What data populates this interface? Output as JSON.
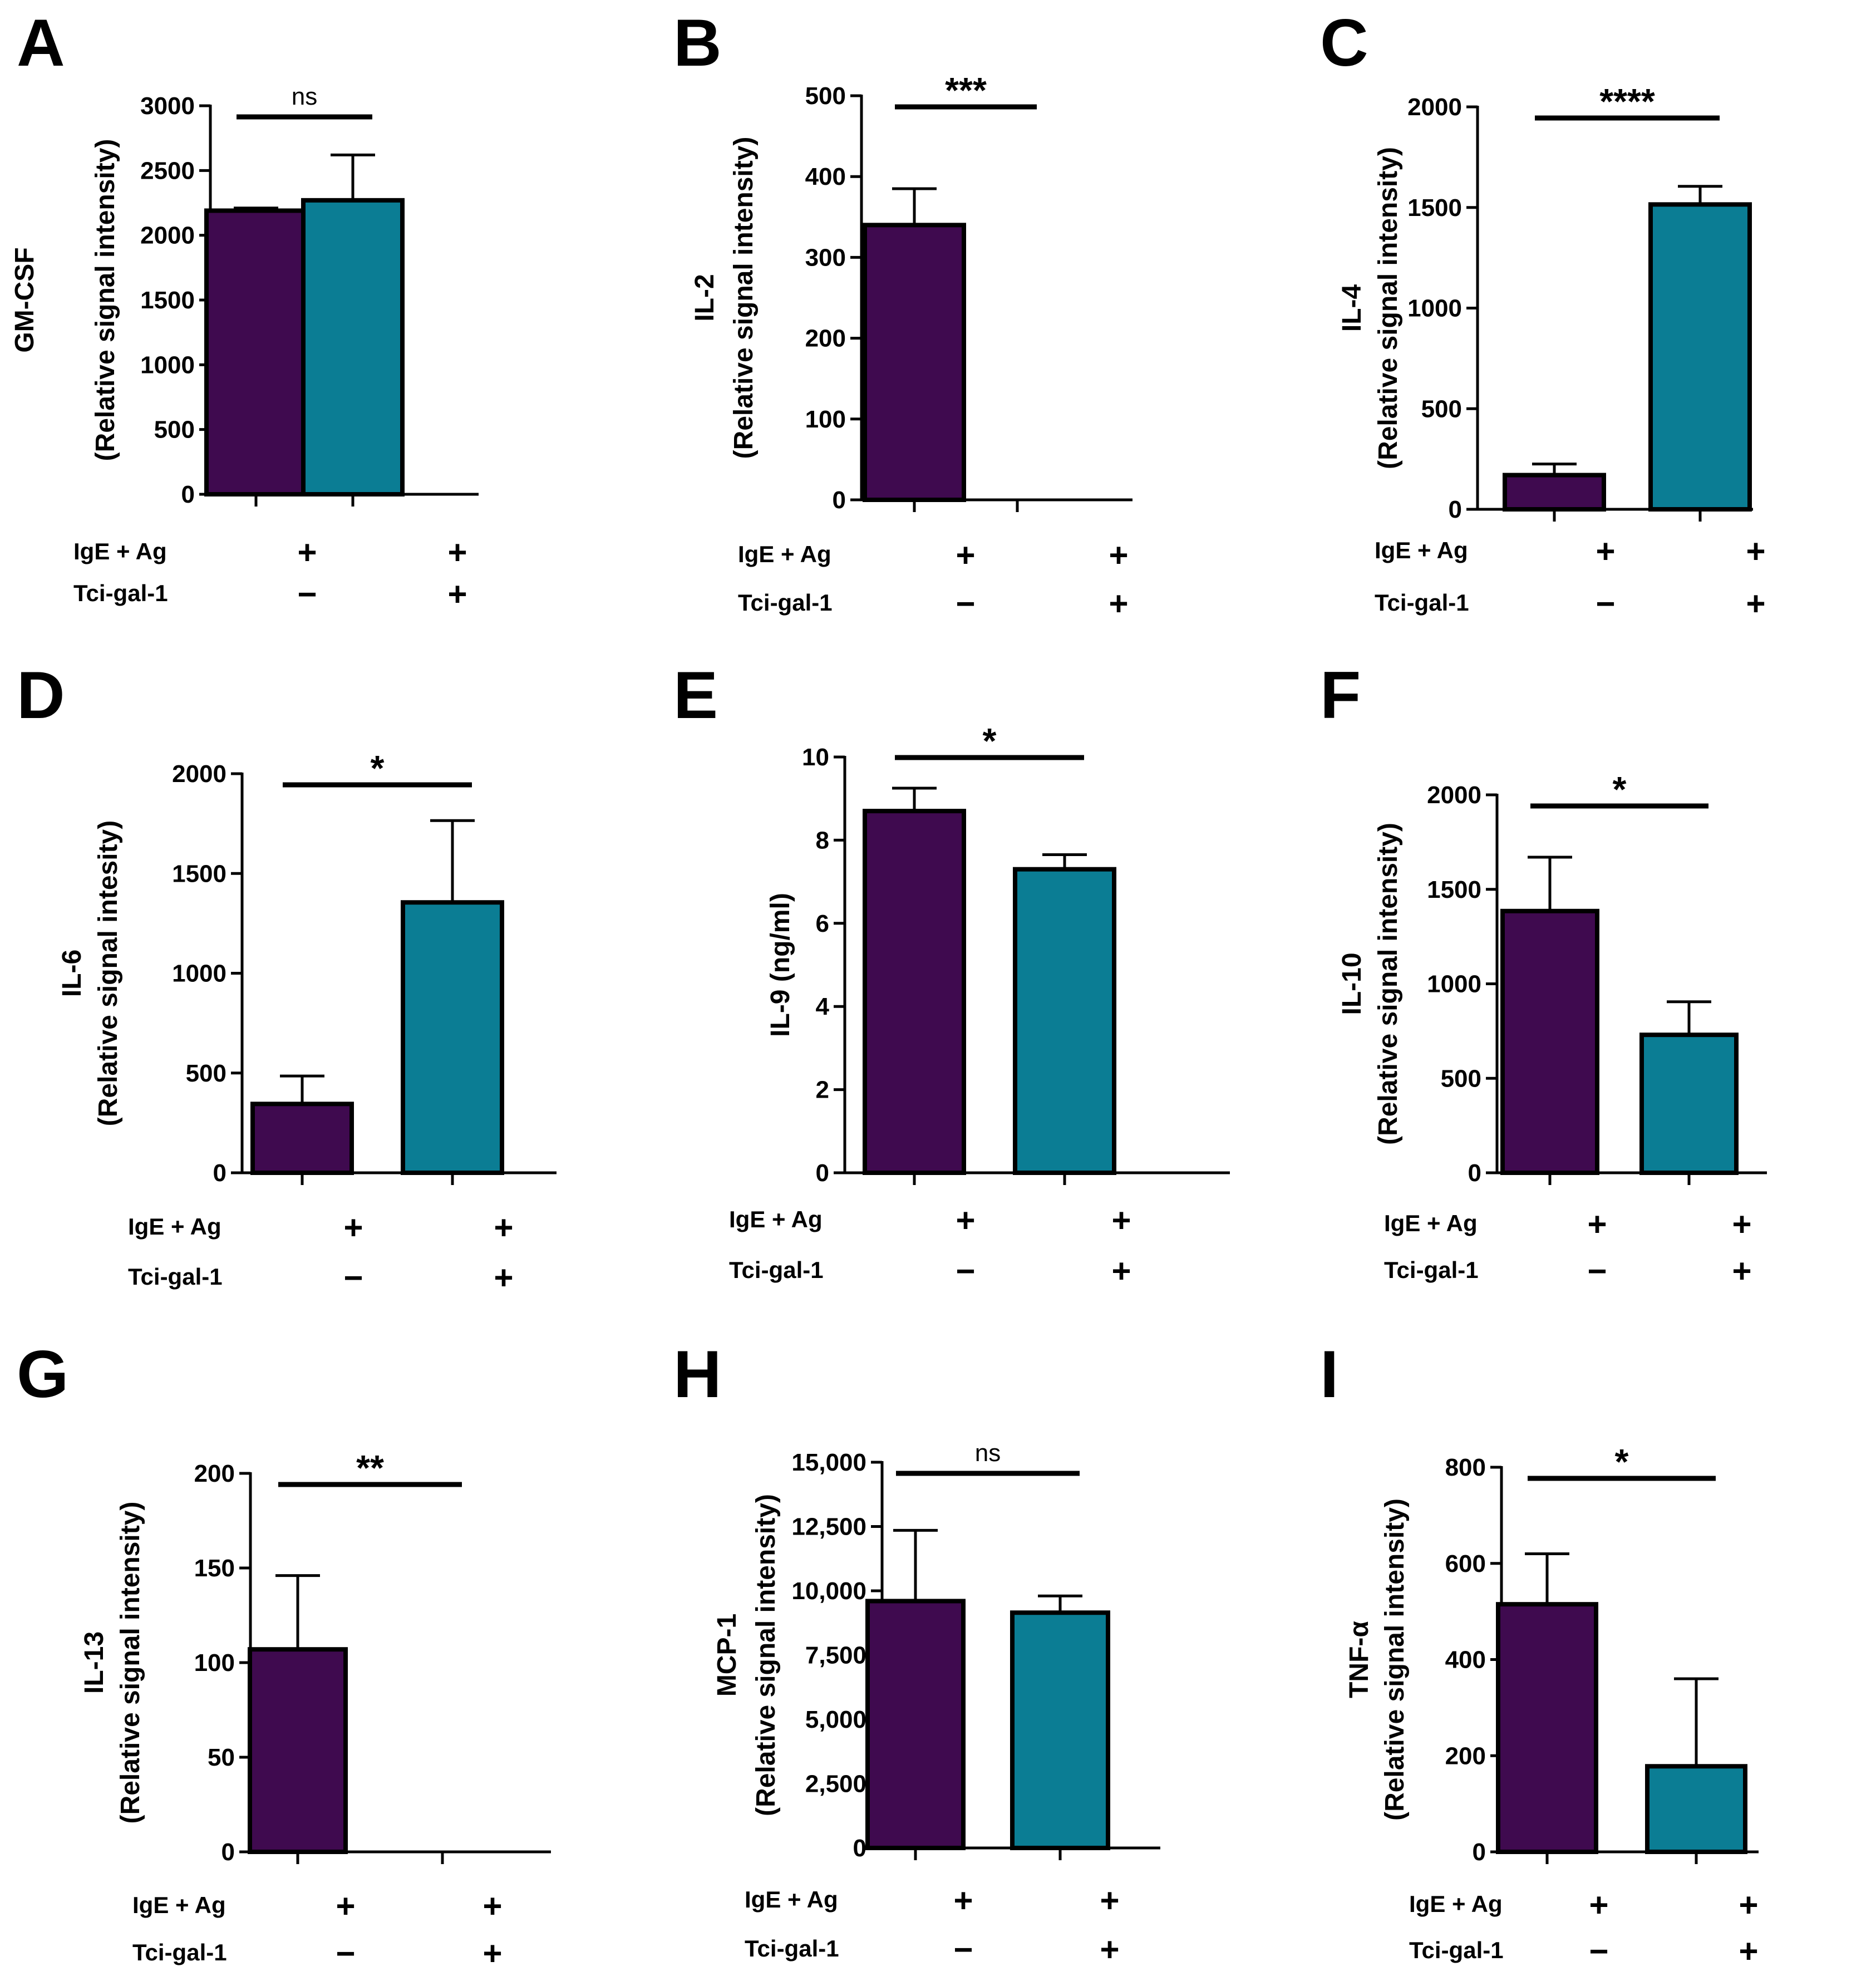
{
  "figure": {
    "colors": {
      "untreated": "#3f0a4f",
      "treated": "#0b7d94",
      "stroke": "#000000",
      "background": "#ffffff"
    },
    "condition_labels": [
      "IgE + Ag",
      "Tci-gal-1"
    ],
    "condition_signs": [
      [
        "+",
        "+"
      ],
      [
        "−",
        "+"
      ]
    ]
  },
  "chart_data": [
    {
      "panel": "A",
      "type": "bar",
      "title": "",
      "categories": [
        "IgE+Ag / −",
        "IgE+Ag / Tci-gal-1"
      ],
      "values": [
        2190,
        2270
      ],
      "errors": [
        20,
        350
      ],
      "ylim": [
        0,
        3000
      ],
      "yticks": [
        "0",
        "500",
        "1000",
        "1500",
        "2000",
        "2500",
        "3000"
      ],
      "ylabel": [
        "GM-CSF",
        "(Relative signal intensity)"
      ],
      "significance": "ns",
      "xlabel": ""
    },
    {
      "panel": "B",
      "type": "bar",
      "title": "",
      "categories": [
        "IgE+Ag / −",
        "IgE+Ag / Tci-gal-1"
      ],
      "values": [
        340,
        0
      ],
      "errors": [
        45,
        0
      ],
      "ylim": [
        0,
        500
      ],
      "yticks": [
        "0",
        "100",
        "200",
        "300",
        "400",
        "500"
      ],
      "ylabel": [
        "IL-2",
        "(Relative signal intensity)"
      ],
      "significance": "***",
      "xlabel": ""
    },
    {
      "panel": "C",
      "type": "bar",
      "title": "",
      "categories": [
        "IgE+Ag / −",
        "IgE+Ag / Tci-gal-1"
      ],
      "values": [
        170,
        1515
      ],
      "errors": [
        55,
        90
      ],
      "ylim": [
        0,
        2000
      ],
      "yticks": [
        "0",
        "500",
        "1000",
        "1500",
        "2000"
      ],
      "ylabel": [
        "IL-4",
        "(Relative signal intensity)"
      ],
      "significance": "****",
      "xlabel": ""
    },
    {
      "panel": "D",
      "type": "bar",
      "title": "",
      "categories": [
        "IgE+Ag / −",
        "IgE+Ag / Tci-gal-1"
      ],
      "values": [
        345,
        1355
      ],
      "errors": [
        140,
        410
      ],
      "ylim": [
        0,
        2000
      ],
      "yticks": [
        "0",
        "500",
        "1000",
        "1500",
        "2000"
      ],
      "ylabel": [
        "IL-6",
        "(Relative signal intesity)"
      ],
      "significance": "*",
      "xlabel": ""
    },
    {
      "panel": "E",
      "type": "bar",
      "title": "",
      "categories": [
        "IgE+Ag / −",
        "IgE+Ag / Tci-gal-1"
      ],
      "values": [
        8.7,
        7.3
      ],
      "errors": [
        0.55,
        0.35
      ],
      "ylim": [
        0,
        10
      ],
      "yticks": [
        "0",
        "2",
        "4",
        "6",
        "8",
        "10"
      ],
      "ylabel": [
        "IL-9 (ng/ml)"
      ],
      "significance": "*",
      "xlabel": ""
    },
    {
      "panel": "F",
      "type": "bar",
      "title": "",
      "categories": [
        "IgE+Ag / −",
        "IgE+Ag / Tci-gal-1"
      ],
      "values": [
        1385,
        730
      ],
      "errors": [
        285,
        175
      ],
      "ylim": [
        0,
        2000
      ],
      "yticks": [
        "0",
        "500",
        "1000",
        "1500",
        "2000"
      ],
      "ylabel": [
        "IL-10",
        "(Relative signal intensity)"
      ],
      "significance": "*",
      "xlabel": ""
    },
    {
      "panel": "G",
      "type": "bar",
      "title": "",
      "categories": [
        "IgE+Ag / −",
        "IgE+Ag / Tci-gal-1"
      ],
      "values": [
        107,
        0
      ],
      "errors": [
        39,
        0
      ],
      "ylim": [
        0,
        200
      ],
      "yticks": [
        "0",
        "50",
        "100",
        "150",
        "200"
      ],
      "ylabel": [
        "IL-13",
        "(Relative signal intensity)"
      ],
      "significance": "**",
      "xlabel": ""
    },
    {
      "panel": "H",
      "type": "bar",
      "title": "",
      "categories": [
        "IgE+Ag / −",
        "IgE+Ag / Tci-gal-1"
      ],
      "values": [
        9600,
        9150
      ],
      "errors": [
        2750,
        650
      ],
      "ylim": [
        0,
        15000
      ],
      "yticks": [
        "0",
        "2,500",
        "5,000",
        "7,500",
        "10,000",
        "12,500",
        "15,000"
      ],
      "ylabel": [
        "MCP-1",
        "(Relative signal intensity)"
      ],
      "significance": "ns",
      "xlabel": ""
    },
    {
      "panel": "I",
      "type": "bar",
      "title": "",
      "categories": [
        "IgE+Ag / −",
        "IgE+Ag / Tci-gal-1"
      ],
      "values": [
        515,
        178
      ],
      "errors": [
        105,
        182
      ],
      "ylim": [
        0,
        800
      ],
      "yticks": [
        "0",
        "200",
        "400",
        "600",
        "800"
      ],
      "ylabel": [
        "TNF-α",
        "(Relative signal intensity)"
      ],
      "significance": "*",
      "xlabel": ""
    }
  ]
}
